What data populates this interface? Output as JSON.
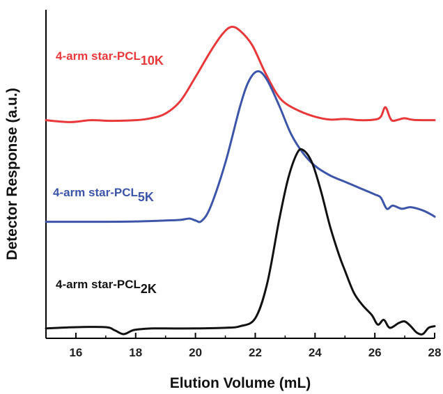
{
  "chart_data": {
    "type": "line",
    "title": "",
    "xlabel": "Elution Volume (mL)",
    "ylabel": "Detector Response (a.u.)",
    "xlim": [
      15,
      28
    ],
    "ylim": [
      0,
      1
    ],
    "x_ticks": [
      "16",
      "18",
      "20",
      "22",
      "24",
      "26",
      "28"
    ],
    "x_tick_values": [
      16,
      18,
      20,
      22,
      24,
      26,
      28
    ],
    "y_ticks_shown": false,
    "grid": false,
    "legend": "inline labels",
    "series": [
      {
        "name": "4-arm star-PCL",
        "subscript": "10K",
        "color": "#e8383a",
        "points": [
          [
            15.0,
            0.674
          ],
          [
            15.8,
            0.668
          ],
          [
            16.5,
            0.674
          ],
          [
            17.2,
            0.672
          ],
          [
            18.0,
            0.674
          ],
          [
            18.5,
            0.68
          ],
          [
            19.0,
            0.695
          ],
          [
            19.5,
            0.735
          ],
          [
            20.0,
            0.81
          ],
          [
            20.5,
            0.89
          ],
          [
            20.9,
            0.945
          ],
          [
            21.2,
            0.968
          ],
          [
            21.5,
            0.955
          ],
          [
            21.9,
            0.91
          ],
          [
            22.3,
            0.83
          ],
          [
            22.7,
            0.76
          ],
          [
            23.0,
            0.728
          ],
          [
            23.5,
            0.702
          ],
          [
            24.0,
            0.685
          ],
          [
            24.5,
            0.676
          ],
          [
            25.0,
            0.678
          ],
          [
            25.5,
            0.674
          ],
          [
            26.0,
            0.676
          ],
          [
            26.2,
            0.685
          ],
          [
            26.35,
            0.715
          ],
          [
            26.5,
            0.683
          ],
          [
            26.6,
            0.672
          ],
          [
            26.8,
            0.676
          ],
          [
            27.0,
            0.68
          ],
          [
            27.3,
            0.675
          ],
          [
            28.0,
            0.674
          ]
        ]
      },
      {
        "name": "4-arm star-PCL",
        "subscript": "5K",
        "color": "#3c55a8",
        "points": [
          [
            15.0,
            0.354
          ],
          [
            16.0,
            0.354
          ],
          [
            17.0,
            0.354
          ],
          [
            18.0,
            0.355
          ],
          [
            19.0,
            0.358
          ],
          [
            19.5,
            0.36
          ],
          [
            19.8,
            0.364
          ],
          [
            20.0,
            0.358
          ],
          [
            20.2,
            0.356
          ],
          [
            20.5,
            0.4
          ],
          [
            21.0,
            0.54
          ],
          [
            21.5,
            0.72
          ],
          [
            21.8,
            0.8
          ],
          [
            22.1,
            0.828
          ],
          [
            22.4,
            0.8
          ],
          [
            22.8,
            0.72
          ],
          [
            23.2,
            0.63
          ],
          [
            23.6,
            0.57
          ],
          [
            24.0,
            0.53
          ],
          [
            24.5,
            0.5
          ],
          [
            25.0,
            0.48
          ],
          [
            25.5,
            0.46
          ],
          [
            26.0,
            0.44
          ],
          [
            26.2,
            0.43
          ],
          [
            26.4,
            0.395
          ],
          [
            26.6,
            0.405
          ],
          [
            26.9,
            0.395
          ],
          [
            27.2,
            0.4
          ],
          [
            27.6,
            0.39
          ],
          [
            27.9,
            0.376
          ],
          [
            28.0,
            0.37
          ]
        ]
      },
      {
        "name": "4-arm star-PCL",
        "subscript": "2K",
        "color": "#111111",
        "points": [
          [
            15.0,
            0.018
          ],
          [
            16.0,
            0.022
          ],
          [
            17.0,
            0.022
          ],
          [
            17.3,
            0.012
          ],
          [
            17.6,
            0.0
          ],
          [
            17.9,
            0.012
          ],
          [
            18.2,
            0.016
          ],
          [
            18.6,
            0.018
          ],
          [
            19.0,
            0.018
          ],
          [
            20.0,
            0.018
          ],
          [
            21.0,
            0.02
          ],
          [
            21.5,
            0.025
          ],
          [
            22.0,
            0.05
          ],
          [
            22.4,
            0.16
          ],
          [
            22.8,
            0.36
          ],
          [
            23.1,
            0.49
          ],
          [
            23.4,
            0.57
          ],
          [
            23.6,
            0.58
          ],
          [
            23.9,
            0.54
          ],
          [
            24.2,
            0.45
          ],
          [
            24.5,
            0.34
          ],
          [
            24.8,
            0.25
          ],
          [
            25.0,
            0.2
          ],
          [
            25.3,
            0.13
          ],
          [
            25.6,
            0.09
          ],
          [
            25.9,
            0.06
          ],
          [
            26.1,
            0.03
          ],
          [
            26.3,
            0.045
          ],
          [
            26.5,
            0.02
          ],
          [
            26.8,
            0.035
          ],
          [
            27.0,
            0.04
          ],
          [
            27.2,
            0.025
          ],
          [
            27.4,
            0.005
          ],
          [
            27.6,
            0.0
          ],
          [
            27.8,
            0.02
          ],
          [
            28.0,
            0.025
          ]
        ]
      }
    ]
  }
}
